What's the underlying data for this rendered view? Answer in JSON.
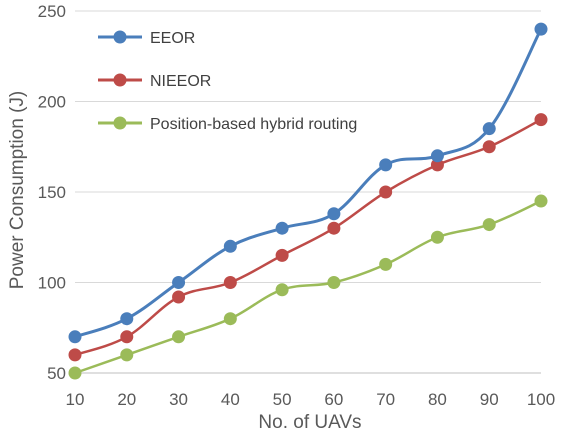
{
  "chart_data": {
    "type": "line",
    "title": "",
    "xlabel": "No. of UAVs",
    "ylabel": "Power  Consumption (J)",
    "x": [
      10,
      20,
      30,
      40,
      50,
      60,
      70,
      80,
      90,
      100
    ],
    "xlim": [
      10,
      100
    ],
    "ylim": [
      50,
      250
    ],
    "yticks": [
      50,
      100,
      150,
      200,
      250
    ],
    "grid": "horizontal",
    "smooth": true,
    "legend_position": "top-left",
    "series": [
      {
        "name": "EEOR",
        "color": "#4A7EBB",
        "values": [
          70,
          80,
          100,
          120,
          130,
          138,
          165,
          170,
          185,
          240
        ]
      },
      {
        "name": "NIEEOR",
        "color": "#BE4B48",
        "values": [
          60,
          70,
          92,
          100,
          115,
          130,
          150,
          165,
          175,
          190
        ]
      },
      {
        "name": "Position-based hybrid routing",
        "color": "#9BBB59",
        "values": [
          50,
          60,
          70,
          80,
          96,
          100,
          110,
          125,
          132,
          145
        ]
      }
    ]
  }
}
